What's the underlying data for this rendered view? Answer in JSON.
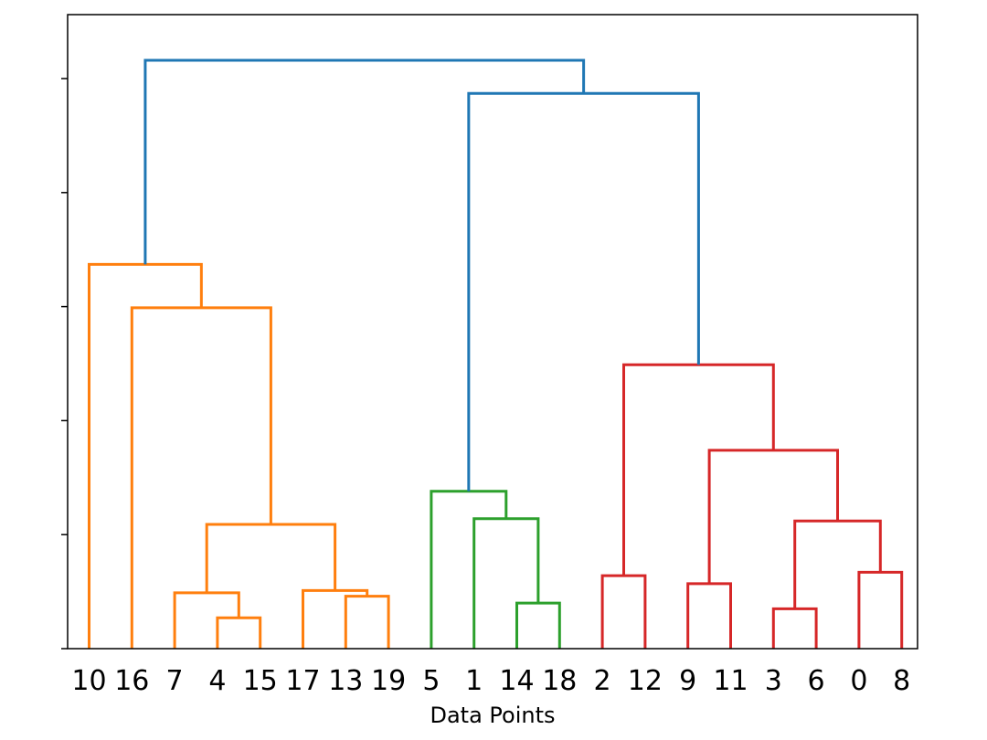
{
  "chart_data": {
    "type": "dendrogram",
    "title": "",
    "xlabel": "Data Points",
    "ylabel": "",
    "ylim": [
      0,
      5.4
    ],
    "y_ticks": [
      0,
      1,
      2,
      3,
      4,
      5
    ],
    "y_tick_labels_shown": false,
    "grid": false,
    "leaf_order": [
      "10",
      "16",
      "7",
      "4",
      "15",
      "17",
      "13",
      "19",
      "5",
      "1",
      "14",
      "18",
      "2",
      "12",
      "9",
      "11",
      "3",
      "6",
      "0",
      "8"
    ],
    "colors": {
      "root": "#1f77b4",
      "cluster_1": "#ff7f0e",
      "cluster_2": "#2ca02c",
      "cluster_3": "#d62728"
    },
    "merges": [
      {
        "id": "m1",
        "left": "4",
        "right": "15",
        "height": 0.27,
        "color": "cluster_1"
      },
      {
        "id": "m2",
        "left": "7",
        "right": "m1",
        "height": 0.49,
        "color": "cluster_1"
      },
      {
        "id": "m3",
        "left": "13",
        "right": "19",
        "height": 0.46,
        "color": "cluster_1"
      },
      {
        "id": "m4",
        "left": "17",
        "right": "m3",
        "height": 0.51,
        "color": "cluster_1"
      },
      {
        "id": "m5",
        "left": "m2",
        "right": "m4",
        "height": 1.09,
        "color": "cluster_1"
      },
      {
        "id": "m6",
        "left": "16",
        "right": "m5",
        "height": 2.99,
        "color": "cluster_1"
      },
      {
        "id": "m7",
        "left": "10",
        "right": "m6",
        "height": 3.37,
        "color": "cluster_1"
      },
      {
        "id": "m8",
        "left": "14",
        "right": "18",
        "height": 0.4,
        "color": "cluster_2"
      },
      {
        "id": "m9",
        "left": "1",
        "right": "m8",
        "height": 1.14,
        "color": "cluster_2"
      },
      {
        "id": "m10",
        "left": "5",
        "right": "m9",
        "height": 1.38,
        "color": "cluster_2"
      },
      {
        "id": "m11",
        "left": "2",
        "right": "12",
        "height": 0.64,
        "color": "cluster_3"
      },
      {
        "id": "m12",
        "left": "9",
        "right": "11",
        "height": 0.57,
        "color": "cluster_3"
      },
      {
        "id": "m13",
        "left": "3",
        "right": "6",
        "height": 0.35,
        "color": "cluster_3"
      },
      {
        "id": "m14",
        "left": "0",
        "right": "8",
        "height": 0.67,
        "color": "cluster_3"
      },
      {
        "id": "m15",
        "left": "m13",
        "right": "m14",
        "height": 1.12,
        "color": "cluster_3"
      },
      {
        "id": "m16",
        "left": "m12",
        "right": "m15",
        "height": 1.74,
        "color": "cluster_3"
      },
      {
        "id": "m17",
        "left": "m11",
        "right": "m16",
        "height": 2.49,
        "color": "cluster_3"
      },
      {
        "id": "m18",
        "left": "m10",
        "right": "m17",
        "height": 4.87,
        "color": "root"
      },
      {
        "id": "m19",
        "left": "m7",
        "right": "m18",
        "height": 5.16,
        "color": "root"
      }
    ]
  }
}
